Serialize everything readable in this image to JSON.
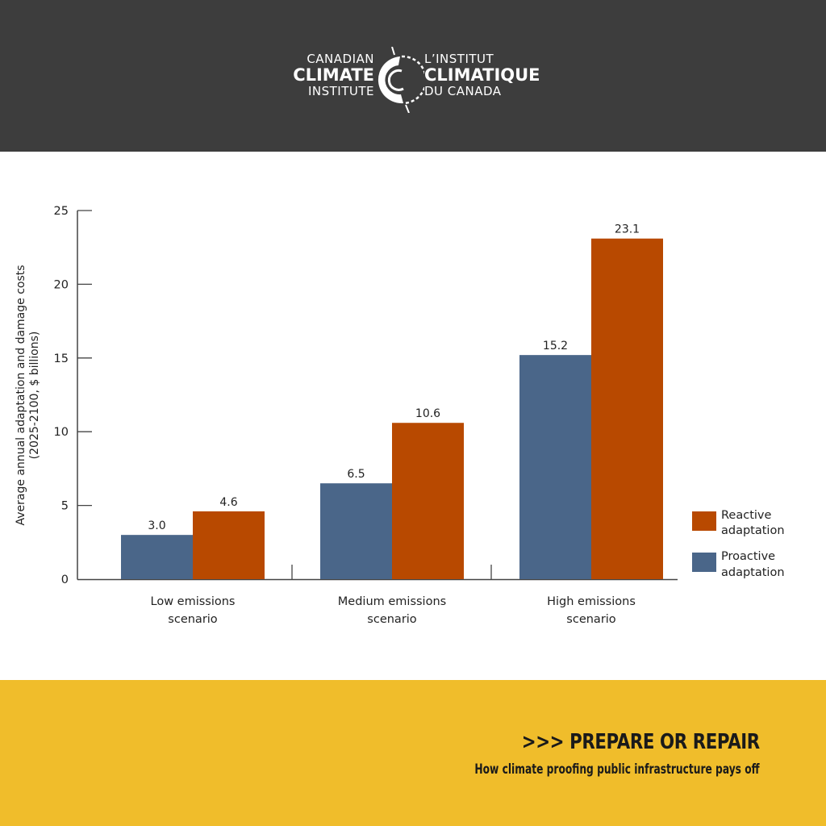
{
  "header": {
    "logo": {
      "left_line1": "CANADIAN",
      "left_line2": "CLIMATE",
      "left_line3": "INSTITUTE",
      "right_line1": "L’INSTITUT",
      "right_line2": "CLIMATIQUE",
      "right_line3": "DU CANADA"
    }
  },
  "colors": {
    "header_bg": "#3d3d3d",
    "footer_bg": "#f0bd2b",
    "reactive": "#b84900",
    "proactive": "#4a6689"
  },
  "chart_data": {
    "type": "bar",
    "title": "",
    "xlabel": "",
    "ylabel": "Average annual adaptation and damage costs (2025-2100, $ billions)",
    "ylabel_line1": "Average annual adaptation and damage costs",
    "ylabel_line2": "(2025-2100, $ billions)",
    "categories": [
      "Low emissions scenario",
      "Medium emissions scenario",
      "High emissions scenario"
    ],
    "category_lines": [
      [
        "Low emissions",
        "scenario"
      ],
      [
        "Medium emissions",
        "scenario"
      ],
      [
        "High emissions",
        "scenario"
      ]
    ],
    "series": [
      {
        "name": "Proactive adaptation",
        "color": "#4a6689",
        "values": [
          3.0,
          6.5,
          15.2
        ],
        "labels": [
          "3.0",
          "6.5",
          "15.2"
        ]
      },
      {
        "name": "Reactive adaptation",
        "color": "#b84900",
        "values": [
          4.6,
          10.6,
          23.1
        ],
        "labels": [
          "4.6",
          "10.6",
          "23.1"
        ]
      }
    ],
    "yticks": [
      0,
      5,
      10,
      15,
      20,
      25
    ],
    "ylim": [
      0,
      25
    ],
    "grid": false,
    "legend": {
      "position": "right",
      "entries": [
        {
          "line1": "Reactive",
          "line2": "adaptation",
          "color": "#b84900"
        },
        {
          "line1": "Proactive",
          "line2": "adaptation",
          "color": "#4a6689"
        }
      ]
    }
  },
  "footer": {
    "title": ">>> PREPARE OR REPAIR",
    "subtitle": "How climate proofing public infrastructure pays off"
  }
}
